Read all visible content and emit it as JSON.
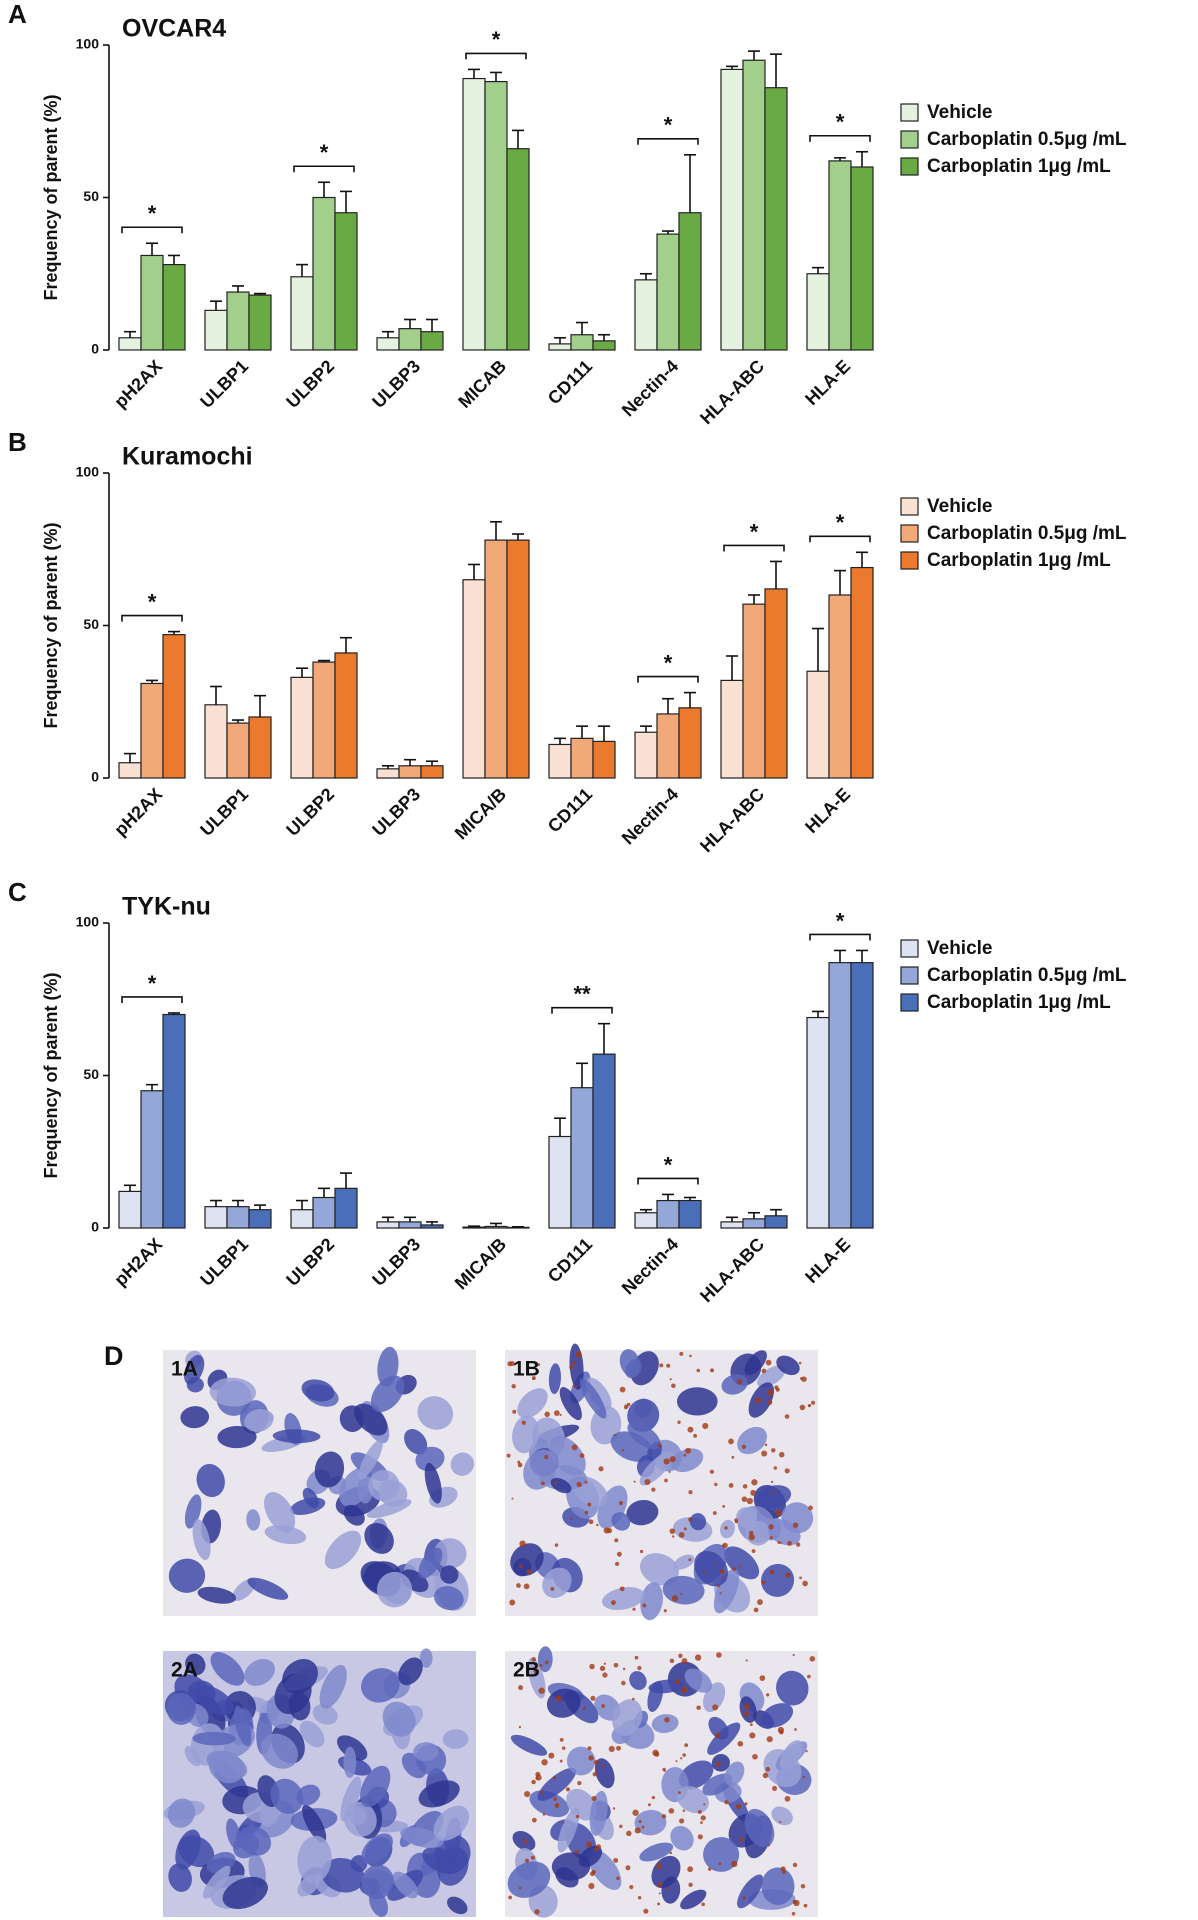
{
  "chart_data": [
    {
      "panel": "A",
      "type": "bar",
      "title": "OVCAR4",
      "y_label": "Frequency of parent  (%)",
      "categories": [
        "pH2AX",
        "ULBP1",
        "ULBP2",
        "ULBP3",
        "MICAB",
        "CD111",
        "Nectin-4",
        "HLA-ABC",
        "HLA-E"
      ],
      "series": [
        {
          "name": "Vehicle",
          "color": "#e6f2e0",
          "values": [
            4,
            13,
            24,
            4,
            89,
            2,
            23,
            92,
            25
          ],
          "errors": [
            2,
            3,
            4,
            2,
            3,
            2,
            2,
            1,
            2
          ]
        },
        {
          "name": "Carboplatin 0.5μg /mL",
          "color": "#a3cf8c",
          "values": [
            31,
            19,
            50,
            7,
            88,
            5,
            38,
            95,
            62
          ],
          "errors": [
            4,
            2,
            5,
            3,
            3,
            4,
            1,
            3,
            1
          ]
        },
        {
          "name": "Carboplatin 1μg /mL",
          "color": "#6aaa45",
          "values": [
            28,
            18,
            45,
            6,
            66,
            3,
            45,
            86,
            60
          ],
          "errors": [
            3,
            0.5,
            7,
            4,
            6,
            2,
            19,
            11,
            5
          ]
        }
      ],
      "ylim": [
        0,
        100
      ],
      "yticks": [
        0,
        50,
        100
      ],
      "legend": "right",
      "significance": [
        {
          "category": "pH2AX",
          "label": "*"
        },
        {
          "category": "ULBP2",
          "label": "*"
        },
        {
          "category": "MICAB",
          "label": "*"
        },
        {
          "category": "Nectin-4",
          "label": "*"
        },
        {
          "category": "HLA-E",
          "label": "*"
        }
      ]
    },
    {
      "panel": "B",
      "type": "bar",
      "title": "Kuramochi",
      "y_label": "Frequency of parent (%)",
      "categories": [
        "pH2AX",
        "ULBP1",
        "ULBP2",
        "ULBP3",
        "MICA/B",
        "CD111",
        "Nectin-4",
        "HLA-ABC",
        "HLA-E"
      ],
      "series": [
        {
          "name": "Vehicle",
          "color": "#fbe0d4",
          "values": [
            5,
            24,
            33,
            3,
            65,
            11,
            15,
            32,
            35
          ],
          "errors": [
            3,
            6,
            3,
            1,
            5,
            2,
            2,
            8,
            14
          ]
        },
        {
          "name": "Carboplatin 0.5μg /mL",
          "color": "#f2a97a",
          "values": [
            31,
            18,
            38,
            4,
            78,
            13,
            21,
            57,
            60
          ],
          "errors": [
            1,
            1,
            0.5,
            2,
            6,
            4,
            5,
            3,
            8
          ]
        },
        {
          "name": "Carboplatin 1μg /mL",
          "color": "#ec7a2e",
          "values": [
            47,
            20,
            41,
            4,
            78,
            12,
            23,
            62,
            69
          ],
          "errors": [
            1,
            7,
            5,
            1.5,
            2,
            5,
            5,
            9,
            5
          ]
        }
      ],
      "ylim": [
        0,
        100
      ],
      "yticks": [
        0,
        50,
        100
      ],
      "legend": "right",
      "significance": [
        {
          "category": "pH2AX",
          "label": "*"
        },
        {
          "category": "Nectin-4",
          "label": "*"
        },
        {
          "category": "HLA-ABC",
          "label": "*"
        },
        {
          "category": "HLA-E",
          "label": "*"
        }
      ]
    },
    {
      "panel": "C",
      "type": "bar",
      "title": "TYK-nu",
      "y_label": "Frequency of parent (%)",
      "categories": [
        "pH2AX",
        "ULBP1",
        "ULBP2",
        "ULBP3",
        "MICA/B",
        "CD111",
        "Nectin-4",
        "HLA-ABC",
        "HLA-E"
      ],
      "series": [
        {
          "name": "Vehicle",
          "color": "#dde3f1",
          "values": [
            12,
            7,
            6,
            2,
            0.3,
            30,
            5,
            2,
            69
          ],
          "errors": [
            2,
            2,
            3,
            1.5,
            0.3,
            6,
            1,
            1.5,
            2
          ]
        },
        {
          "name": "Carboplatin 0.5μg /mL",
          "color": "#93a8d8",
          "values": [
            45,
            7,
            10,
            2,
            0.5,
            46,
            9,
            3,
            87
          ],
          "errors": [
            2,
            2,
            3,
            1.5,
            1,
            8,
            2,
            2,
            4
          ]
        },
        {
          "name": "Carboplatin 1μg /mL",
          "color": "#4a6fb8",
          "values": [
            70,
            6,
            13,
            1,
            0.2,
            57,
            9,
            4,
            87
          ],
          "errors": [
            0.5,
            1.5,
            5,
            1,
            0.2,
            10,
            1,
            2,
            4
          ]
        }
      ],
      "ylim": [
        0,
        100
      ],
      "yticks": [
        0,
        50,
        100
      ],
      "legend": "right",
      "significance": [
        {
          "category": "pH2AX",
          "label": "*"
        },
        {
          "category": "CD111",
          "label": "**"
        },
        {
          "category": "Nectin-4",
          "label": "*"
        },
        {
          "category": "HLA-E",
          "label": "*"
        }
      ]
    }
  ],
  "image_panel": {
    "label": "D",
    "images": [
      {
        "label": "1A"
      },
      {
        "label": "1B"
      },
      {
        "label": "2A"
      },
      {
        "label": "2B"
      }
    ]
  }
}
